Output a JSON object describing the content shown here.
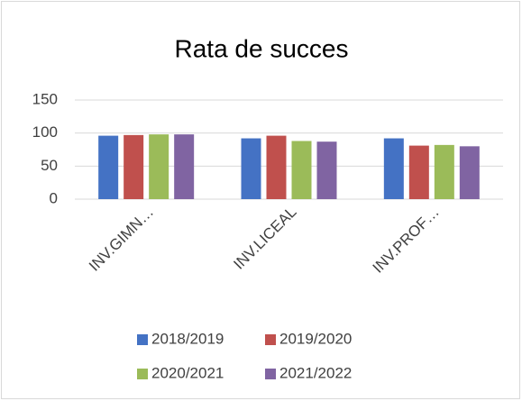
{
  "chart_data": {
    "type": "bar",
    "title": "Rata de succes",
    "categories": [
      "INV.GIMN…",
      "INV.LICEAL",
      "INV.PROF…"
    ],
    "series": [
      {
        "name": "2018/2019",
        "color": "#4472c4",
        "values": [
          96,
          92,
          92
        ]
      },
      {
        "name": "2019/2020",
        "color": "#c0504d",
        "values": [
          97,
          96,
          81
        ]
      },
      {
        "name": "2020/2021",
        "color": "#9bbb59",
        "values": [
          98,
          88,
          82
        ]
      },
      {
        "name": "2021/2022",
        "color": "#8064a2",
        "values": [
          98,
          87,
          80
        ]
      }
    ],
    "ylim": [
      0,
      150
    ],
    "yticks": [
      0,
      50,
      100,
      150
    ],
    "grid": true,
    "legend": "bottom"
  }
}
